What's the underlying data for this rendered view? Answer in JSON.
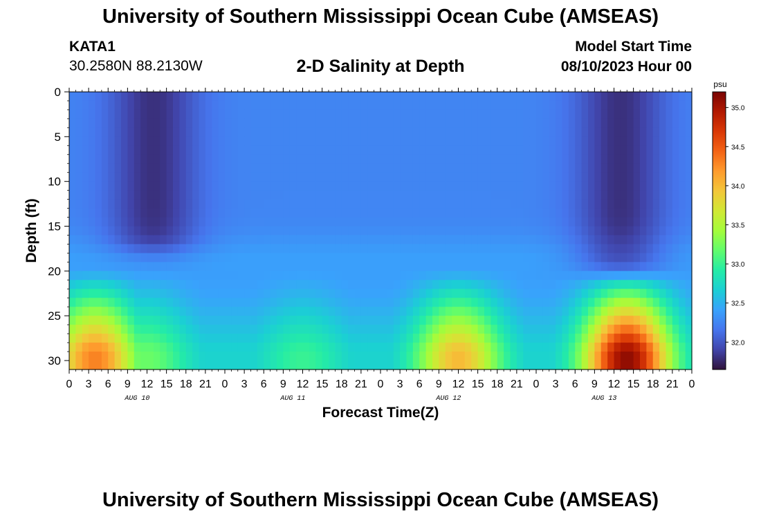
{
  "header": {
    "title": "University of Southern Mississippi Ocean Cube (AMSEAS)",
    "station": "KATA1",
    "coordinates": "30.2580N  88.2130W",
    "subtitle": "2-D Salinity at Depth",
    "model_start_label": "Model Start Time",
    "model_start_value": "08/10/2023 Hour 00"
  },
  "footer": {
    "title": "University of Southern Mississippi Ocean Cube (AMSEAS)"
  },
  "chart_data": {
    "type": "heatmap",
    "xlabel": "Forecast Time(Z)",
    "ylabel": "Depth (ft)",
    "x_hours_range": [
      0,
      96
    ],
    "x_tick_step_hours": 3,
    "x_tick_labels": [
      "0",
      "3",
      "6",
      "9",
      "12",
      "15",
      "18",
      "21",
      "0",
      "3",
      "6",
      "9",
      "12",
      "15",
      "18",
      "21",
      "0",
      "3",
      "6",
      "9",
      "12",
      "15",
      "18",
      "21",
      "0",
      "3",
      "6",
      "9",
      "12",
      "15",
      "18",
      "21",
      "0"
    ],
    "day_labels": [
      "AUG 10",
      "AUG 11",
      "AUG 12",
      "AUG 13"
    ],
    "y_range": [
      0,
      31
    ],
    "y_ticks": [
      "0",
      "5",
      "10",
      "15",
      "20",
      "25",
      "30"
    ],
    "y_inverted": true,
    "colorbar": {
      "unit": "psu",
      "range": [
        31.65,
        35.2
      ],
      "ticks": [
        "32.0",
        "32.5",
        "33.0",
        "33.5",
        "34.0",
        "34.5",
        "35.0"
      ]
    },
    "field": {
      "surface_base": 32.25,
      "halocline_depth": 22,
      "fresh_events": [
        {
          "center_hour": 13,
          "depth_extent": 16,
          "min_value": 31.7
        },
        {
          "center_hour": 85,
          "depth_extent": 18,
          "min_value": 31.7
        }
      ],
      "bottom_peaks": [
        {
          "center_hour": 4,
          "value": 34.3
        },
        {
          "center_hour": 12,
          "value": 33.2
        },
        {
          "center_hour": 36,
          "value": 33.0
        },
        {
          "center_hour": 60,
          "value": 34.0
        },
        {
          "center_hour": 86,
          "value": 35.1
        }
      ]
    },
    "colors": {
      "scale": [
        "#30123b",
        "#4145ab",
        "#4675ed",
        "#39a2fc",
        "#1bcfd4",
        "#24eca6",
        "#61fc6c",
        "#a4fc3b",
        "#d1e834",
        "#f3c63a",
        "#fe9b2d",
        "#f36315",
        "#d93806",
        "#b11901",
        "#7a0403"
      ]
    }
  }
}
